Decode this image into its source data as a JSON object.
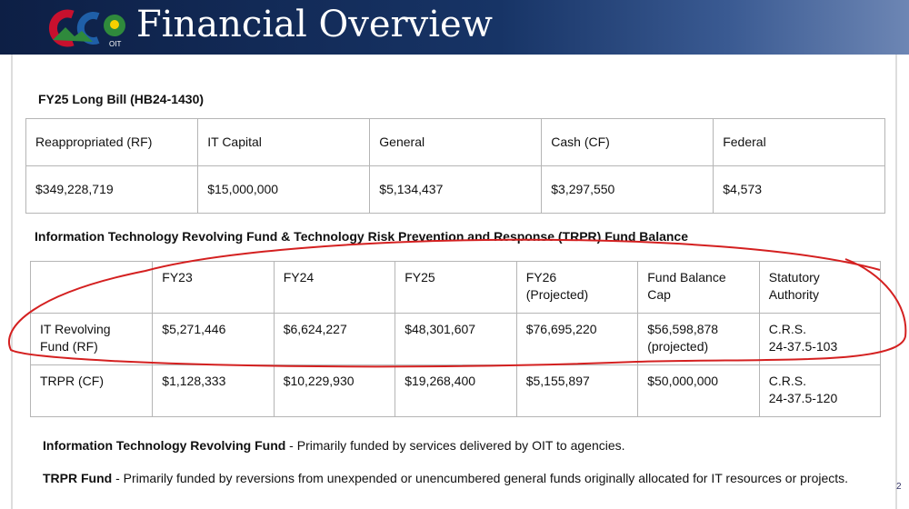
{
  "header": {
    "title": "Financial Overview",
    "logo_text": "OIT"
  },
  "long_bill": {
    "title": "FY25 Long Bill (HB24-1430)",
    "headers": [
      "Reappropriated (RF)",
      "IT Capital",
      "General",
      "Cash (CF)",
      "Federal"
    ],
    "values": [
      "$349,228,719",
      "$15,000,000",
      "$5,134,437",
      "$3,297,550",
      "$4,573"
    ]
  },
  "fund_balance": {
    "title": "Information Technology Revolving Fund & Technology Risk Prevention and Response (TRPR) Fund Balance",
    "headers": [
      "FY23",
      "FY24",
      "FY25",
      "FY26\n(Projected)",
      "Fund Balance\nCap",
      "Statutory\nAuthority"
    ],
    "rows": [
      [
        "IT Revolving\nFund (RF)",
        "$5,271,446",
        "$6,624,227",
        "$48,301,607",
        "$76,695,220",
        "$56,598,878\n(projected)",
        "C.R.S.\n24-37.5-103"
      ],
      [
        "TRPR (CF)",
        "$1,128,333",
        "$10,229,930",
        "$19,268,400",
        "$5,155,897",
        "$50,000,000",
        "C.R.S.\n24-37.5-120"
      ]
    ]
  },
  "notes": [
    {
      "lead": "Information Technology Revolving Fund",
      "text": " - Primarily funded by services delivered by OIT to agencies."
    },
    {
      "lead": "TRPR Fund",
      "text": " - Primarily funded by reversions from unexpended or unencumbered general funds originally allocated for IT resources or projects."
    }
  ],
  "page_number": "2"
}
